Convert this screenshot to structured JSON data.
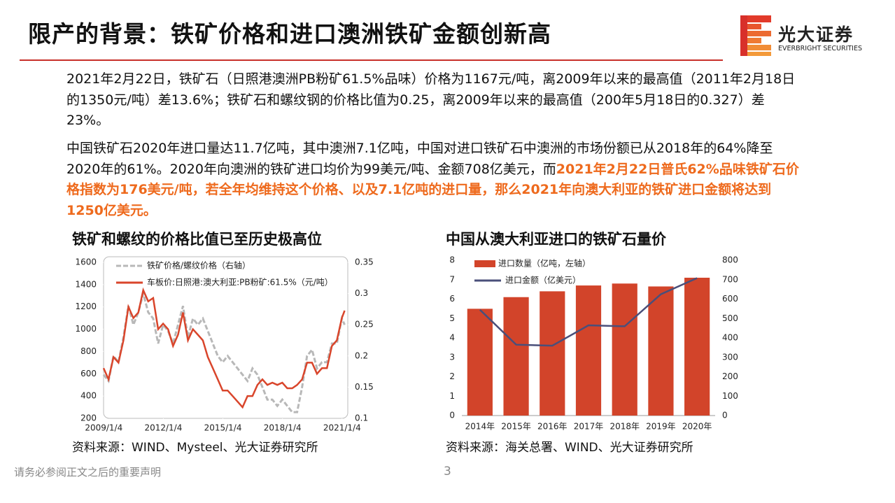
{
  "header": {
    "title": "限产的背景：铁矿价格和进口澳洲铁矿金额创新高"
  },
  "logo": {
    "name": "光大证券",
    "name_en": "EVERBRIGHT SECURITIES"
  },
  "paragraphs": [
    [
      "2021年2月22日，铁矿石（日照港澳洲PB粉矿61.5%品味）价格为1167元/吨，离2009年以来的最高值（2011年2月18日的1350元/吨）差13.6%；铁矿石和螺纹钢的价格比值为0.25，离2009年以来的最高值（200年5月18日的0.327）差23%。"
    ],
    [
      "中国铁矿石2020年进口量达11.7亿吨，其中澳洲7.1亿吨，中国对进口铁矿石中澳洲的市场份额已从2018年的64%降至2020年的61%。2020年向澳洲的铁矿进口均价为99美元/吨、金额708亿美元，而",
      "2021年2月22日普氏62%品味铁矿石价格指数为176美元/吨，若全年均维持这个价格、以及7.1亿吨的进口量，那么2021年向澳大利亚的铁矿进口金额将达到1250亿美元。"
    ]
  ],
  "chart_data": [
    {
      "type": "line",
      "title": "铁矿和螺纹的价格比值已至历史极高位",
      "source": "资料来源：WIND、Mysteel、光大证券研究所",
      "legend": "upper left",
      "grid": false,
      "x": [
        2009.0,
        2009.25,
        2009.5,
        2009.75,
        2010.0,
        2010.25,
        2010.5,
        2010.75,
        2011.0,
        2011.25,
        2011.5,
        2011.75,
        2012.0,
        2012.25,
        2012.5,
        2012.75,
        2013.0,
        2013.25,
        2013.5,
        2013.75,
        2014.0,
        2014.25,
        2014.5,
        2014.75,
        2015.0,
        2015.25,
        2015.5,
        2015.75,
        2016.0,
        2016.25,
        2016.5,
        2016.75,
        2017.0,
        2017.25,
        2017.5,
        2017.75,
        2018.0,
        2018.25,
        2018.5,
        2018.75,
        2019.0,
        2019.25,
        2019.5,
        2019.75,
        2020.0,
        2020.25,
        2020.5,
        2020.75,
        2021.0,
        2021.14
      ],
      "xlim": [
        2009.0,
        2021.3
      ],
      "xticks": [
        {
          "value": 2009.01,
          "label": "2009/1/4"
        },
        {
          "value": 2012.01,
          "label": "2012/1/4"
        },
        {
          "value": 2015.01,
          "label": "2015/1/4"
        },
        {
          "value": 2018.01,
          "label": "2018/1/4"
        },
        {
          "value": 2021.01,
          "label": "2021/1/4"
        }
      ],
      "ylim": [
        200,
        1600
      ],
      "yticks": [
        200,
        400,
        600,
        800,
        1000,
        1200,
        1400,
        1600
      ],
      "y2lim": [
        0.1,
        0.35
      ],
      "y2ticks": [
        0.1,
        0.15,
        0.2,
        0.25,
        0.3,
        0.35
      ],
      "series": [
        {
          "name": "铁矿价格/螺纹价格（右轴）",
          "color": "#b8b8b8",
          "axis": "y2",
          "dashed": true,
          "values": [
            0.17,
            0.16,
            0.2,
            0.19,
            0.23,
            0.28,
            0.25,
            0.27,
            0.3,
            0.27,
            0.26,
            0.22,
            0.25,
            0.24,
            0.22,
            0.25,
            0.28,
            0.23,
            0.26,
            0.25,
            0.26,
            0.24,
            0.22,
            0.2,
            0.19,
            0.2,
            0.19,
            0.18,
            0.17,
            0.16,
            0.18,
            0.17,
            0.15,
            0.13,
            0.13,
            0.12,
            0.13,
            0.12,
            0.11,
            0.11,
            0.15,
            0.2,
            0.21,
            0.18,
            0.19,
            0.19,
            0.22,
            0.22,
            0.26,
            0.25
          ]
        },
        {
          "name": "车板价:日照港:澳大利亚:PB粉矿:61.5%（元/吨）",
          "color": "#d9452b",
          "values": [
            650,
            550,
            750,
            700,
            900,
            1200,
            1100,
            1150,
            1350,
            1250,
            1280,
            1000,
            1050,
            1000,
            850,
            950,
            1150,
            900,
            1000,
            950,
            900,
            750,
            650,
            550,
            450,
            450,
            400,
            350,
            300,
            400,
            400,
            500,
            550,
            500,
            520,
            500,
            520,
            470,
            470,
            500,
            550,
            700,
            700,
            600,
            650,
            650,
            850,
            900,
            1100,
            1167
          ]
        }
      ]
    },
    {
      "type": "bar",
      "title": "中国从澳大利亚进口的铁矿石量价",
      "source": "资料来源：海关总署、WIND、光大证券研究所",
      "legend": "upper left",
      "grid": false,
      "categories": [
        "2014年",
        "2015年",
        "2016年",
        "2017年",
        "2018年",
        "2019年",
        "2020年"
      ],
      "ylim": [
        0,
        8
      ],
      "yticks": [
        0,
        1,
        2,
        3,
        4,
        5,
        6,
        7,
        8
      ],
      "y2lim": [
        0,
        800
      ],
      "y2ticks": [
        0,
        100,
        200,
        300,
        400,
        500,
        600,
        700,
        800
      ],
      "series": [
        {
          "name": "进口数量（亿吨，左轴）",
          "color": "#d2442a",
          "values": [
            5.5,
            6.1,
            6.4,
            6.7,
            6.8,
            6.65,
            7.1
          ]
        },
        {
          "name": "进口金额（亿美元）",
          "color": "#4a4f7a",
          "axis": "y2",
          "type": "line",
          "values": [
            545,
            365,
            360,
            465,
            460,
            625,
            708
          ]
        }
      ]
    }
  ]
}
